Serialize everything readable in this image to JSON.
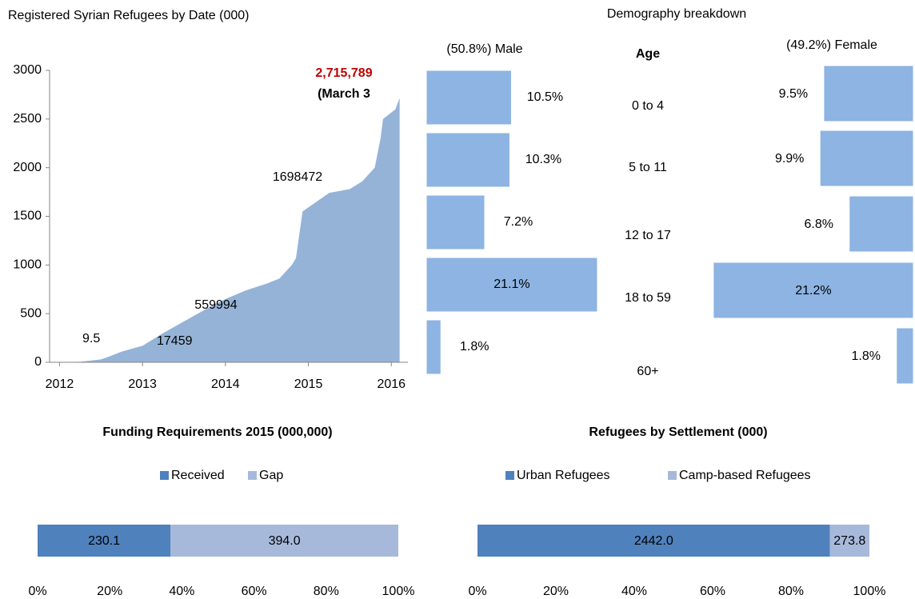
{
  "chart_data": [
    {
      "type": "area",
      "title": "Registered Syrian Refugees by Date (000)",
      "color": "#95b3d7",
      "x": [
        2011.9,
        2012.25,
        2012.5,
        2012.6,
        2012.75,
        2013.0,
        2013.25,
        2013.5,
        2013.75,
        2014.0,
        2014.25,
        2014.5,
        2014.65,
        2014.8,
        2014.85,
        2014.93,
        2015.25,
        2015.5,
        2015.65,
        2015.8,
        2015.87,
        2015.9,
        2016.05,
        2016.1
      ],
      "values": [
        0,
        5,
        30,
        60,
        110,
        170,
        300,
        420,
        540,
        650,
        740,
        810,
        860,
        1000,
        1070,
        1550,
        1740,
        1780,
        1860,
        2000,
        2300,
        2500,
        2600,
        2716
      ],
      "xlim": [
        2011.88,
        2016.2
      ],
      "xticks": [
        2012,
        2013,
        2014,
        2015,
        2016
      ],
      "ylim": [
        0,
        3000
      ],
      "yticks": [
        0,
        500,
        1000,
        1500,
        2000,
        2500,
        3000
      ],
      "annotations": [
        "9.5",
        "17459",
        "559994",
        "1698472",
        "2,715,789",
        "(March 3"
      ]
    },
    {
      "type": "bar",
      "orientation": "horizontal",
      "title": "Demography breakdown",
      "categories_title": "Age",
      "categories": [
        "0 to 4",
        "5 to 11",
        "12 to 17",
        "18 to 59",
        "60+"
      ],
      "series": [
        {
          "name": "(50.8%) Male",
          "color": "#8db4e2",
          "values": [
            10.5,
            10.3,
            7.2,
            21.1,
            1.8
          ],
          "value_labels": [
            "10.5%",
            "10.3%",
            "7.2%",
            "21.1%",
            "1.8%"
          ]
        },
        {
          "name": "(49.2%) Female",
          "color": "#8db4e2",
          "values": [
            9.5,
            9.9,
            6.8,
            21.2,
            1.8
          ],
          "value_labels": [
            "9.5%",
            "9.9%",
            "6.8%",
            "21.2%",
            "1.8%"
          ]
        }
      ]
    },
    {
      "type": "bar",
      "orientation": "horizontal",
      "stacked": "percent",
      "title": "Funding Requirements 2015 (000,000)",
      "series": [
        {
          "name": "Received",
          "color": "#4f81bd",
          "values": [
            230.1
          ],
          "value_labels": [
            "230.1"
          ]
        },
        {
          "name": "Gap",
          "color": "#a7b9db",
          "values": [
            394.0
          ],
          "value_labels": [
            "394.0"
          ]
        }
      ],
      "xlim": [
        0,
        100
      ],
      "xticks": [
        {
          "value": 0,
          "label": "0%"
        },
        {
          "value": 20,
          "label": "20%"
        },
        {
          "value": 40,
          "label": "40%"
        },
        {
          "value": 60,
          "label": "60%"
        },
        {
          "value": 80,
          "label": "80%"
        },
        {
          "value": 100,
          "label": "100%"
        }
      ],
      "legend": "top"
    },
    {
      "type": "bar",
      "orientation": "horizontal",
      "stacked": "percent",
      "title": "Refugees by Settlement (000)",
      "series": [
        {
          "name": "Urban Refugees",
          "color": "#4f81bd",
          "values": [
            2442.0
          ],
          "value_labels": [
            "2442.0"
          ]
        },
        {
          "name": "Camp-based Refugees",
          "color": "#a7b9db",
          "values": [
            273.8
          ],
          "value_labels": [
            "273.8"
          ]
        }
      ],
      "xlim": [
        0,
        100
      ],
      "xticks": [
        {
          "value": 0,
          "label": "0%"
        },
        {
          "value": 20,
          "label": "20%"
        },
        {
          "value": 40,
          "label": "40%"
        },
        {
          "value": 60,
          "label": "60%"
        },
        {
          "value": 80,
          "label": "80%"
        },
        {
          "value": 100,
          "label": "100%"
        }
      ],
      "legend": "top"
    }
  ]
}
